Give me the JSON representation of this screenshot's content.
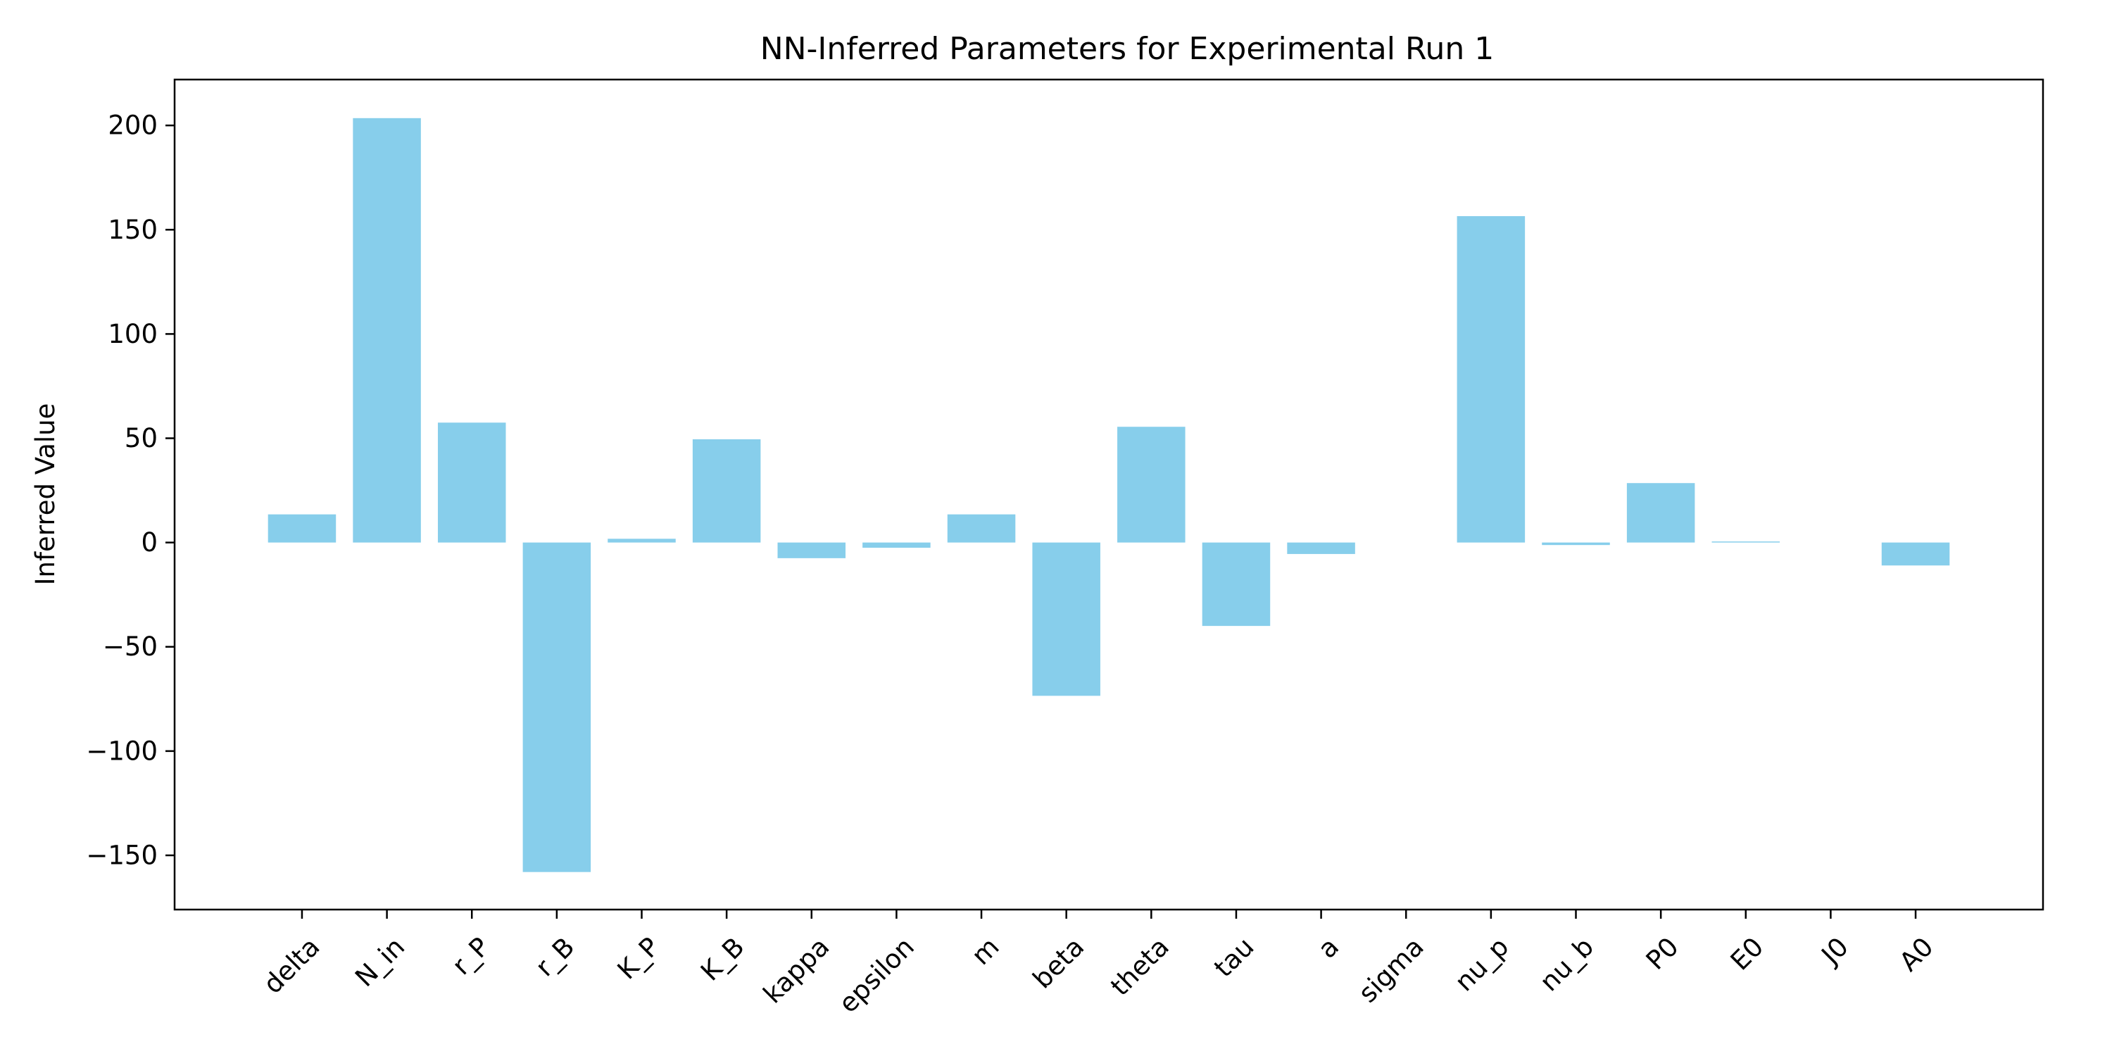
{
  "chart_data": {
    "type": "bar",
    "title": "NN-Inferred Parameters for Experimental Run 1",
    "xlabel": "",
    "ylabel": "Inferred Value",
    "categories": [
      "delta",
      "N_in",
      "r_P",
      "r_B",
      "K_P",
      "K_B",
      "kappa",
      "epsilon",
      "m",
      "beta",
      "theta",
      "tau",
      "a",
      "sigma",
      "nu_p",
      "nu_b",
      "P0",
      "E0",
      "J0",
      "A0"
    ],
    "values": [
      13.5,
      203.5,
      57.5,
      -158,
      1.8,
      49.5,
      -7.5,
      -2.5,
      13.5,
      -73.5,
      55.5,
      -40,
      -5.5,
      0,
      156.5,
      -1.2,
      28.5,
      0.5,
      0,
      -11
    ],
    "ylim": [
      -176,
      222
    ],
    "yticks": [
      -150,
      -100,
      -50,
      0,
      50,
      100,
      150,
      200
    ],
    "grid": false,
    "legend": "none",
    "bar_color": "#87CEEB"
  }
}
